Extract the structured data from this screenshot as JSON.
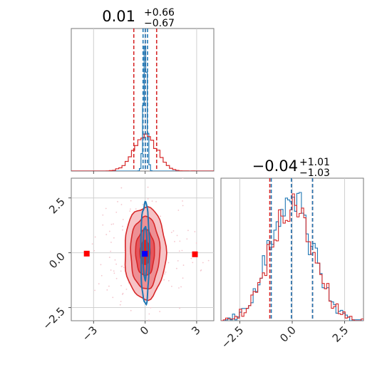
{
  "chart_data": {
    "type": "corner",
    "colors": {
      "series_a": "#1f77b4",
      "series_b": "#d62728",
      "marker_a": "#0000ff",
      "marker_b": "#ff0000"
    },
    "panels": [
      {
        "id": "x-marginal",
        "type": "histogram",
        "title": {
          "value": "0.01",
          "upper": "+0.66",
          "lower": "−0.67"
        },
        "x_range": [
          -4.3,
          4.0
        ],
        "x_ticks": [
          -3,
          0,
          3
        ],
        "grid": true,
        "quantile_lines": {
          "series_a": [
            -0.12,
            0.01,
            0.14
          ],
          "series_b": [
            -0.66,
            0.01,
            0.67
          ]
        }
      },
      {
        "id": "xy-joint",
        "type": "contour",
        "x_range": [
          -4.3,
          4.0
        ],
        "y_range": [
          -3.1,
          3.4
        ],
        "x_ticks": [
          -3,
          0,
          3
        ],
        "x_tick_labels": [
          "−3",
          "0",
          "3"
        ],
        "y_ticks": [
          2.5,
          0.0,
          -2.5
        ],
        "y_tick_labels": [
          "2.5",
          "0.0",
          "−2.5"
        ],
        "grid": true,
        "markers": {
          "series_a": [
            [
              -0.02,
              -0.05
            ]
          ],
          "series_b": [
            [
              -3.4,
              -0.04
            ],
            [
              2.9,
              -0.07
            ],
            [
              0.0,
              -0.04
            ]
          ]
        },
        "contour_levels": {
          "series_b": [
            {
              "sx": 0.3,
              "sy": 0.55
            },
            {
              "sx": 0.55,
              "sy": 1.05
            },
            {
              "sx": 0.85,
              "sy": 1.65
            },
            {
              "sx": 1.2,
              "sy": 2.1
            }
          ],
          "series_a": [
            {
              "sx": 0.12,
              "sy": 1.2
            },
            {
              "sx": 0.25,
              "sy": 2.3
            }
          ]
        }
      },
      {
        "id": "y-marginal",
        "type": "histogram",
        "title": {
          "value": "−0.04",
          "upper": "+1.01",
          "lower": "−1.03"
        },
        "x_range": [
          -3.4,
          3.4
        ],
        "x_ticks": [
          -2.5,
          0.0,
          2.5
        ],
        "x_tick_labels": [
          "−2.5",
          "0.0",
          "2.5"
        ],
        "grid": true,
        "quantile_lines": {
          "series_a": [
            -1.0,
            -0.04,
            0.97
          ],
          "series_b": [
            -1.07,
            -0.04,
            0.97
          ]
        }
      }
    ]
  }
}
